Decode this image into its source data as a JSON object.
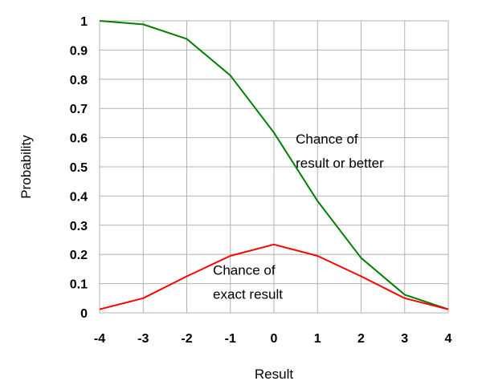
{
  "chart_data": {
    "type": "line",
    "title": "",
    "xlabel": "Result",
    "ylabel": "Probability",
    "x": [
      -4,
      -3,
      -2,
      -1,
      0,
      1,
      2,
      3,
      4
    ],
    "xlim": [
      -4,
      4
    ],
    "ylim": [
      0,
      1
    ],
    "x_ticks": [
      "-4",
      "-3",
      "-2",
      "-1",
      "0",
      "1",
      "2",
      "3",
      "4"
    ],
    "y_ticks": [
      "0",
      "0.1",
      "0.2",
      "0.3",
      "0.4",
      "0.5",
      "0.6",
      "0.7",
      "0.8",
      "0.9",
      "1"
    ],
    "grid": true,
    "legend": "none",
    "series": [
      {
        "name": "Chance of result or better",
        "color": "#008000",
        "values": [
          1.0,
          0.988,
          0.938,
          0.813,
          0.617,
          0.383,
          0.188,
          0.062,
          0.012
        ]
      },
      {
        "name": "Chance of exact result",
        "color": "#ff0000",
        "values": [
          0.012,
          0.05,
          0.125,
          0.195,
          0.234,
          0.195,
          0.125,
          0.05,
          0.012
        ]
      }
    ],
    "annotations": [
      {
        "lines": [
          "Chance of",
          "result or better"
        ],
        "x": 0.5,
        "y": 0.58
      },
      {
        "lines": [
          "Chance of",
          "exact result"
        ],
        "x": -1.4,
        "y": 0.13
      }
    ]
  }
}
